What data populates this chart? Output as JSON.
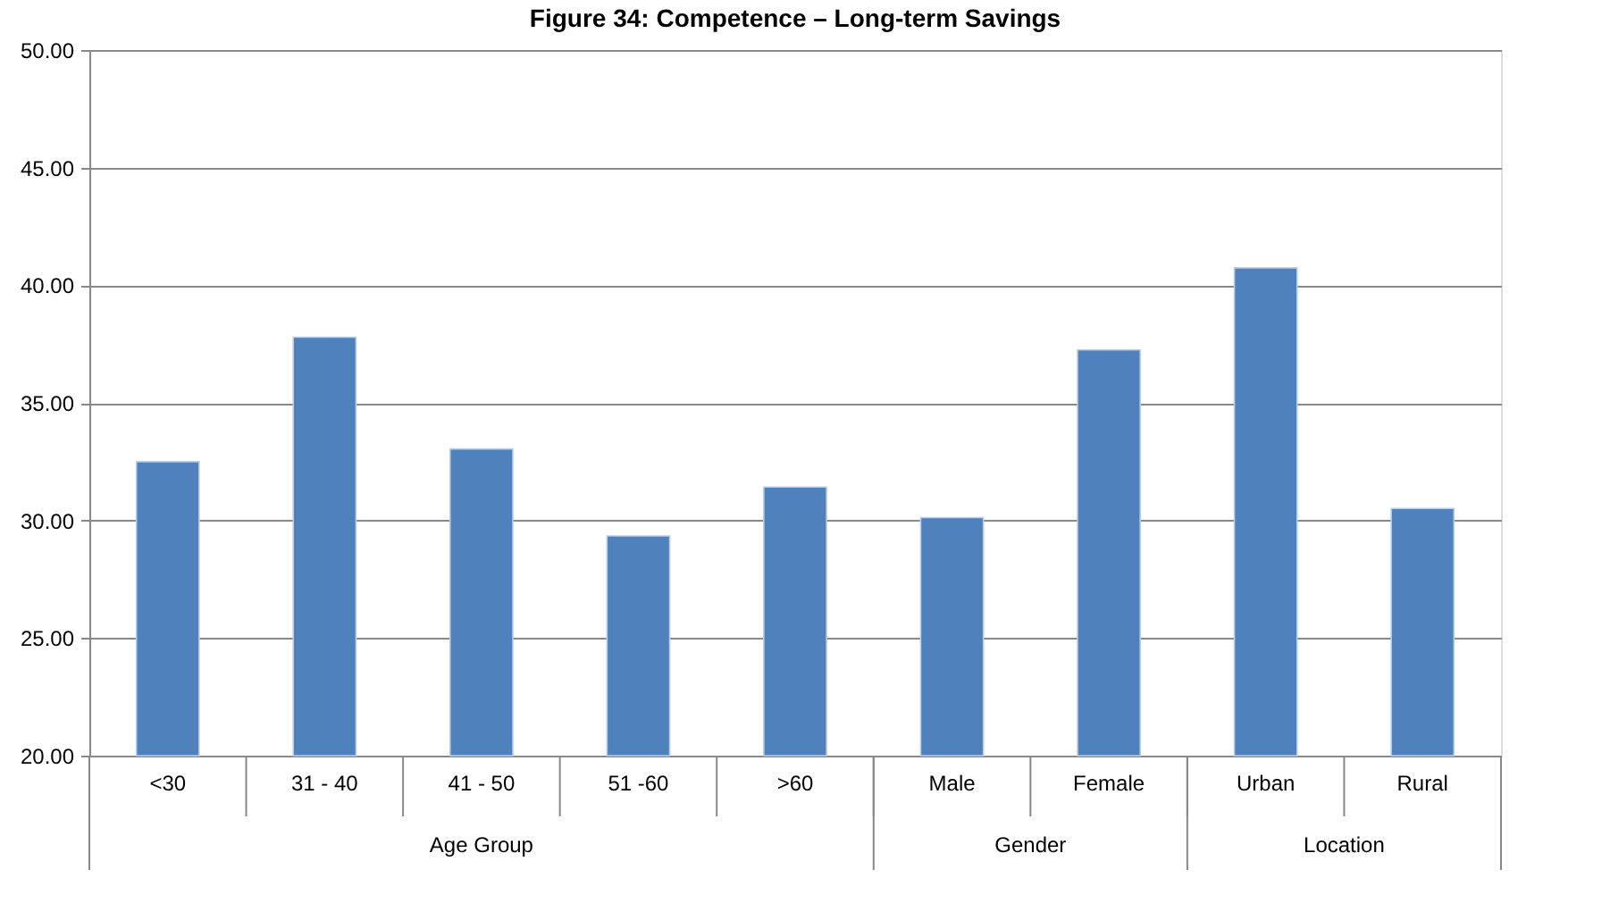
{
  "chart_data": {
    "type": "bar",
    "title": "Figure 34: Competence – Long-term Savings",
    "categories": [
      "<30",
      "31 - 40",
      "41 - 50",
      "51 -60",
      ">60",
      "Male",
      "Female",
      "Urban",
      "Rural"
    ],
    "values": [
      32.5,
      37.79,
      33.04,
      29.34,
      31.42,
      30.12,
      37.25,
      40.74,
      30.51
    ],
    "color": "#4f81bd",
    "ylim": [
      20,
      50
    ],
    "yticks": [
      {
        "value": 20,
        "label": "20.00"
      },
      {
        "value": 25,
        "label": "25.00"
      },
      {
        "value": 30,
        "label": "30.00"
      },
      {
        "value": 35,
        "label": "35.00"
      },
      {
        "value": 40,
        "label": "40.00"
      },
      {
        "value": 45,
        "label": "45.00"
      },
      {
        "value": 50,
        "label": "50.00"
      }
    ],
    "grid": "y",
    "annotations": [
      "Age Group",
      "Gender",
      "Location"
    ]
  }
}
